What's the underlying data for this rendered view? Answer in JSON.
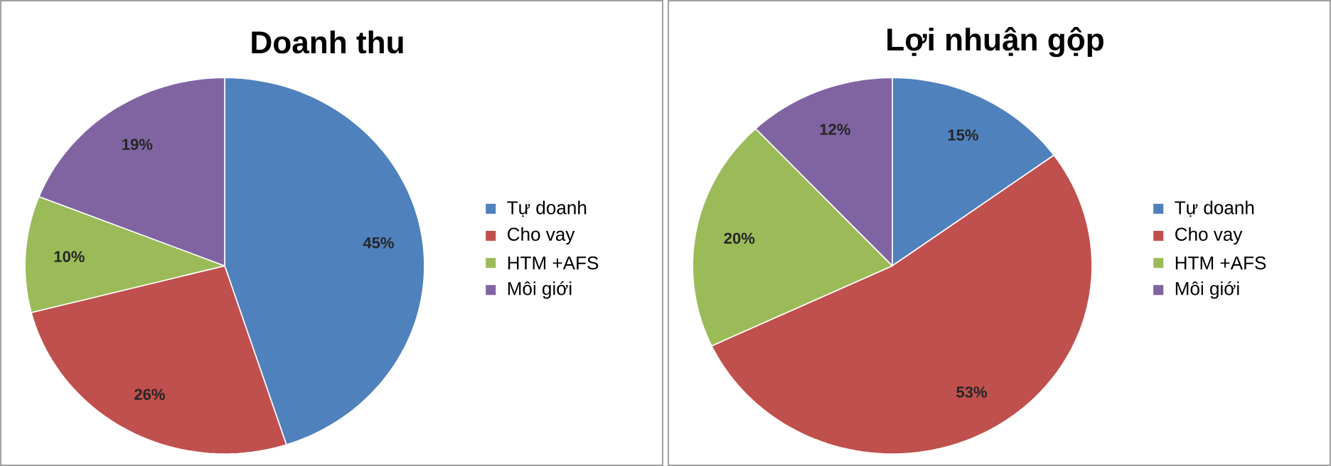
{
  "chart_data": [
    {
      "type": "pie",
      "title": "Doanh thu",
      "categories": [
        "Tự doanh",
        "Cho vay",
        "HTM +AFS",
        "Môi giới"
      ],
      "values": [
        45,
        26,
        10,
        19
      ],
      "colors": [
        "#4f81bd",
        "#c0504d",
        "#9bbb59",
        "#8064a2"
      ],
      "value_labels": [
        "45%",
        "26%",
        "10%",
        "19%"
      ],
      "legend": "right"
    },
    {
      "type": "pie",
      "title": "Lợi nhuận gộp",
      "categories": [
        "Tự doanh",
        "Cho vay",
        "HTM +AFS",
        "Môi giới"
      ],
      "values": [
        15,
        53,
        20,
        12
      ],
      "colors": [
        "#4f81bd",
        "#c0504d",
        "#9bbb59",
        "#8064a2"
      ],
      "value_labels": [
        "15%",
        "53%",
        "20%",
        "12%"
      ],
      "legend": "right"
    }
  ]
}
